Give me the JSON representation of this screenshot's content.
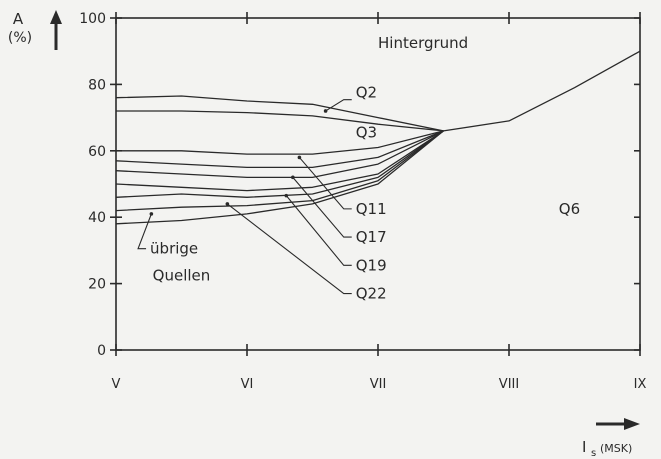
{
  "chart_data": {
    "type": "line",
    "ylabel_letter": "A",
    "ylabel_unit": "(%)",
    "xlabel_main": "I",
    "xlabel_sub": "s",
    "xlabel_scale": "(MSK)",
    "ylim": [
      0,
      100
    ],
    "xlim": [
      5,
      9
    ],
    "yticks": [
      0,
      20,
      40,
      60,
      80,
      100
    ],
    "yticklabels": [
      "0",
      "20",
      "40",
      "60",
      "80",
      "100"
    ],
    "xticks": [
      5,
      6,
      7,
      8,
      9
    ],
    "xticklabels": [
      "V",
      "VI",
      "VII",
      "VIII",
      "IX"
    ],
    "grid": false,
    "series": [
      {
        "x": [
          5.0,
          5.5,
          6.0,
          6.5,
          7.0,
          7.5
        ],
        "y": [
          76,
          76.5,
          75,
          74,
          70,
          66
        ]
      },
      {
        "x": [
          5.0,
          5.5,
          6.0,
          6.5,
          7.0,
          7.5
        ],
        "y": [
          72,
          72,
          71.5,
          70.5,
          68,
          66
        ]
      },
      {
        "x": [
          5.0,
          5.5,
          6.0,
          6.5,
          7.0,
          7.5
        ],
        "y": [
          60,
          60,
          59,
          59,
          61,
          66
        ]
      },
      {
        "x": [
          5.0,
          5.5,
          6.0,
          6.5,
          7.0,
          7.5
        ],
        "y": [
          57,
          56,
          55,
          55,
          58,
          66
        ]
      },
      {
        "x": [
          5.0,
          5.5,
          6.0,
          6.5,
          7.0,
          7.5
        ],
        "y": [
          54,
          53,
          52,
          52,
          56,
          66
        ]
      },
      {
        "x": [
          5.0,
          5.5,
          6.0,
          6.5,
          7.0,
          7.5
        ],
        "y": [
          50,
          49,
          48,
          49,
          53,
          66
        ]
      },
      {
        "x": [
          5.0,
          5.5,
          6.0,
          6.5,
          7.0,
          7.5
        ],
        "y": [
          46,
          47,
          46,
          47,
          52,
          66
        ]
      },
      {
        "x": [
          5.0,
          5.5,
          6.0,
          6.5,
          7.0,
          7.5
        ],
        "y": [
          42,
          43,
          43.5,
          45,
          51,
          66
        ]
      },
      {
        "x": [
          5.0,
          5.5,
          6.0,
          6.5,
          7.0,
          7.5
        ],
        "y": [
          38,
          39,
          41,
          44,
          50,
          66
        ]
      },
      {
        "x": [
          7.5,
          8.0,
          8.5,
          9.0
        ],
        "y": [
          66,
          69,
          79,
          90
        ]
      }
    ],
    "annotations": [
      {
        "text": "Hintergrund",
        "x": 7.0,
        "y": 91
      },
      {
        "text": "Q2",
        "x": 6.83,
        "y": 76,
        "point_x": 6.6,
        "point_y": 72
      },
      {
        "text": "Q3",
        "x": 6.83,
        "y": 64
      },
      {
        "text": "Q6",
        "x": 8.38,
        "y": 41
      },
      {
        "text": "Q11",
        "x": 6.83,
        "y": 41,
        "point_x": 6.4,
        "point_y": 58
      },
      {
        "text": "Q17",
        "x": 6.83,
        "y": 32.5,
        "point_x": 6.35,
        "point_y": 52
      },
      {
        "text": "Q19",
        "x": 6.83,
        "y": 24,
        "point_x": 6.3,
        "point_y": 46.5
      },
      {
        "text": "Q22",
        "x": 6.83,
        "y": 15.5,
        "point_x": 5.85,
        "point_y": 44
      },
      {
        "text": "übrige",
        "x": 5.26,
        "y": 29,
        "point_x": 5.27,
        "point_y": 41
      },
      {
        "text": "Quellen",
        "x": 5.28,
        "y": 21
      }
    ]
  }
}
